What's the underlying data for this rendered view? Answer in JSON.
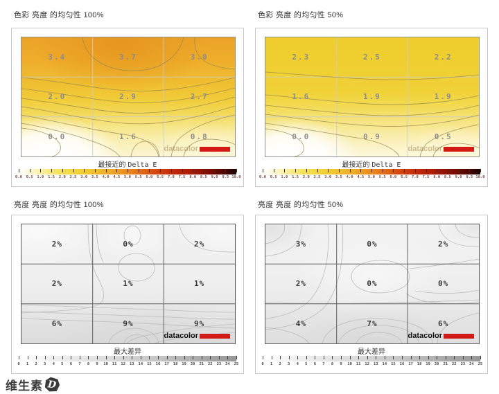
{
  "colors": {
    "datacolor_red": "#d21914",
    "panel_border": "#c8c8c8",
    "contour_color_charts": "#97864f",
    "contour_gray_charts": "#bbbbbb"
  },
  "brand": {
    "watermark_text": "datacolor",
    "footer_logo_text": "维生素",
    "footer_logo_badge": "D"
  },
  "charts": [
    {
      "title": "色彩 亮度 的均匀性 100%",
      "scale_label_cjk": "最接近的 ",
      "scale_label_latin": "Delta E",
      "values": [
        [
          "3.4",
          "3.7",
          "3.0"
        ],
        [
          "2.0",
          "2.9",
          "2.7"
        ],
        [
          "0.0",
          "1.6",
          "0.8"
        ]
      ],
      "scale_ticks": [
        "0.0",
        "0.5",
        "1.0",
        "1.5",
        "2.0",
        "2.5",
        "3.0",
        "3.5",
        "4.0",
        "4.5",
        "5.0",
        "5.5",
        "6.0",
        "6.5",
        "7.0",
        "7.5",
        "8.0",
        "8.5",
        "9.0",
        "9.5",
        "10.0"
      ]
    },
    {
      "title": "色彩 亮度 的均匀性 50%",
      "scale_label_cjk": "最接近的 ",
      "scale_label_latin": "Delta E",
      "values": [
        [
          "2.3",
          "2.5",
          "2.2"
        ],
        [
          "1.6",
          "1.9",
          "1.9"
        ],
        [
          "0.0",
          "0.9",
          "0.5"
        ]
      ],
      "scale_ticks": [
        "0.0",
        "0.5",
        "1.0",
        "1.5",
        "2.0",
        "2.5",
        "3.0",
        "3.5",
        "4.0",
        "4.5",
        "5.0",
        "5.5",
        "6.0",
        "6.5",
        "7.0",
        "7.5",
        "8.0",
        "8.5",
        "9.0",
        "9.5",
        "10.0"
      ]
    },
    {
      "title": "亮度 亮度 的均匀性 100%",
      "scale_label_cjk": "最大差异",
      "scale_label_latin": "",
      "values": [
        [
          "2%",
          "0%",
          "2%"
        ],
        [
          "2%",
          "1%",
          "1%"
        ],
        [
          "6%",
          "9%",
          "9%"
        ]
      ],
      "scale_ticks": [
        "0",
        "1",
        "2",
        "3",
        "4",
        "5",
        "6",
        "7",
        "8",
        "9",
        "10",
        "11",
        "12",
        "13",
        "14",
        "15",
        "16",
        "17",
        "18",
        "19",
        "20",
        "21",
        "22",
        "23",
        "24",
        "25"
      ]
    },
    {
      "title": "亮度 亮度 的均匀性 50%",
      "scale_label_cjk": "最大差异",
      "scale_label_latin": "",
      "values": [
        [
          "3%",
          "0%",
          "2%"
        ],
        [
          "2%",
          "0%",
          "0%"
        ],
        [
          "4%",
          "7%",
          "6%"
        ]
      ],
      "scale_ticks": [
        "0",
        "1",
        "2",
        "3",
        "4",
        "5",
        "6",
        "7",
        "8",
        "9",
        "10",
        "11",
        "12",
        "13",
        "14",
        "15",
        "16",
        "17",
        "18",
        "19",
        "20",
        "21",
        "22",
        "23",
        "24",
        "25"
      ]
    }
  ],
  "chart_data": [
    {
      "type": "heatmap",
      "title": "色彩 亮度 的均匀性 100%",
      "grid": "3x3 (screen positions, top row first)",
      "values": [
        [
          3.4,
          3.7,
          3.0
        ],
        [
          2.0,
          2.9,
          2.7
        ],
        [
          0.0,
          1.6,
          0.8
        ]
      ],
      "scale_label": "最接近的 Delta E",
      "scale_range": [
        0,
        10
      ],
      "scale_step": 0.5,
      "palette": "white-yellow-orange-red-black",
      "watermark": "datacolor"
    },
    {
      "type": "heatmap",
      "title": "色彩 亮度 的均匀性 50%",
      "grid": "3x3 (screen positions, top row first)",
      "values": [
        [
          2.3,
          2.5,
          2.2
        ],
        [
          1.6,
          1.9,
          1.9
        ],
        [
          0.0,
          0.9,
          0.5
        ]
      ],
      "scale_label": "最接近的 Delta E",
      "scale_range": [
        0,
        10
      ],
      "scale_step": 0.5,
      "palette": "white-yellow-orange-red-black",
      "watermark": "datacolor"
    },
    {
      "type": "heatmap",
      "title": "亮度 亮度 的均匀性 100%",
      "grid": "3x3 (screen positions, top row first)",
      "values": [
        [
          2,
          0,
          2
        ],
        [
          2,
          1,
          1
        ],
        [
          6,
          9,
          9
        ]
      ],
      "unit": "%",
      "scale_label": "最大差异",
      "scale_range": [
        0,
        25
      ],
      "scale_step": 1,
      "palette": "white-gray",
      "watermark": "datacolor"
    },
    {
      "type": "heatmap",
      "title": "亮度 亮度 的均匀性 50%",
      "grid": "3x3 (screen positions, top row first)",
      "values": [
        [
          3,
          0,
          2
        ],
        [
          2,
          0,
          0
        ],
        [
          4,
          7,
          6
        ]
      ],
      "unit": "%",
      "scale_label": "最大差异",
      "scale_range": [
        0,
        25
      ],
      "scale_step": 1,
      "palette": "white-gray",
      "watermark": "datacolor"
    }
  ]
}
